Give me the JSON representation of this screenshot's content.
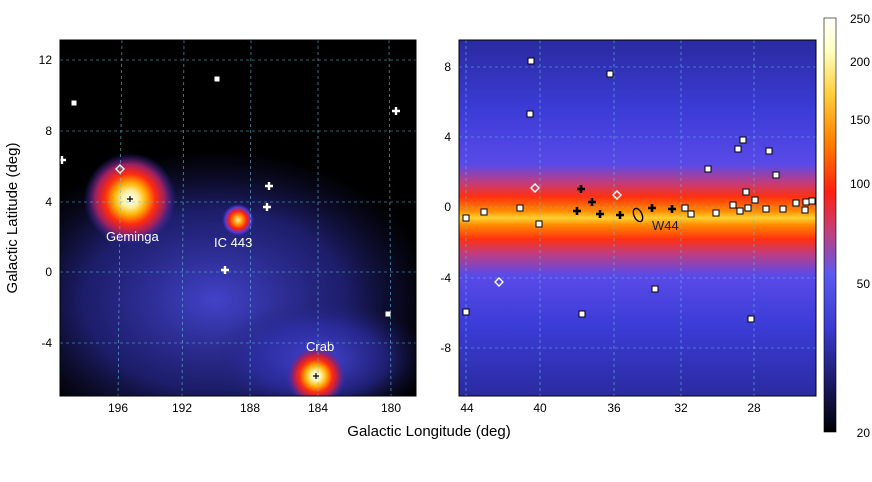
{
  "figure": {
    "left_panel": {
      "x_ticks": [
        "196",
        "192",
        "188",
        "184",
        "180"
      ],
      "y_ticks": [
        "12",
        "8",
        "4",
        "0",
        "-4"
      ],
      "ylabel": "Galactic Latitude (deg)",
      "source_labels": [
        "Geminga",
        "IC 443",
        "Crab"
      ]
    },
    "right_panel": {
      "x_ticks": [
        "44",
        "40",
        "36",
        "32",
        "28"
      ],
      "y_ticks": [
        "8",
        "4",
        "0",
        "-4",
        "-8"
      ],
      "source_labels": [
        "W44"
      ]
    },
    "xlabel": "Galactic Longitude (deg)",
    "colorbar": {
      "ticks": [
        "250",
        "200",
        "150",
        "100",
        "50",
        "20"
      ],
      "colors": [
        "#000000",
        "#1a1a66",
        "#3a3ad0",
        "#5a5af0",
        "#c04080",
        "#ff2010",
        "#ff8000",
        "#ffd040",
        "#ffffc0",
        "#ffffff"
      ]
    }
  }
}
